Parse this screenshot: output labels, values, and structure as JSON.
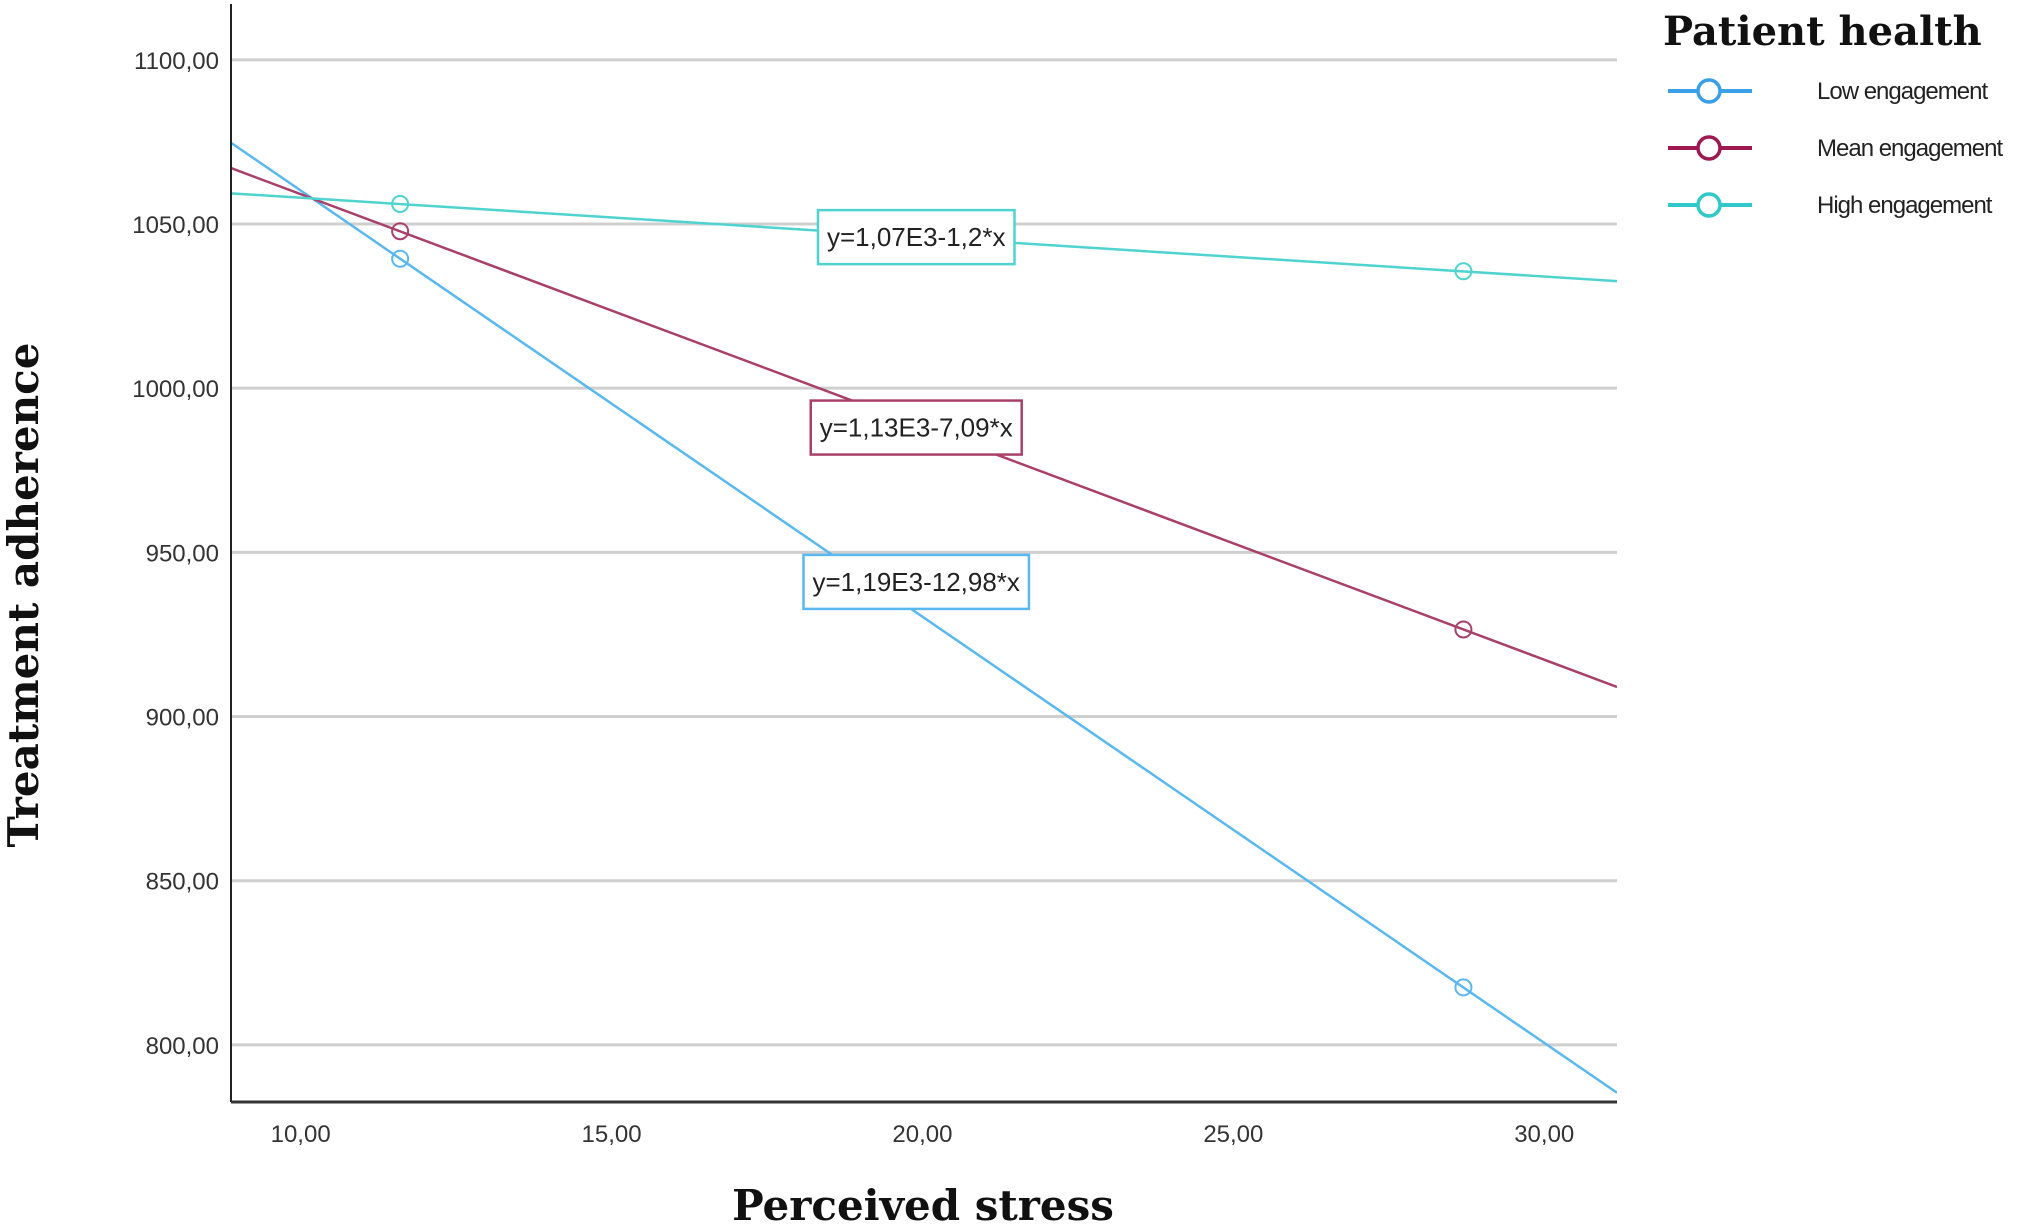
{
  "chart_data": {
    "type": "line",
    "title": "",
    "xlabel": "Perceived stress",
    "ylabel": "Treatment adherence",
    "xlim": [
      8.88,
      31.17
    ],
    "ylim": [
      782.6,
      1117
    ],
    "grid": "horizontal",
    "x_ticks": [
      10,
      15,
      20,
      25,
      30
    ],
    "x_tick_labels": [
      "10,00",
      "15,00",
      "20,00",
      "25,00",
      "30,00"
    ],
    "y_ticks": [
      800,
      850,
      900,
      950,
      1000,
      1050,
      1100
    ],
    "y_tick_labels": [
      "800,00",
      "850,00",
      "900,00",
      "950,00",
      "1000,00",
      "1050,00",
      "1100,00"
    ],
    "legend": {
      "title": "Patient health",
      "placement": "top-right"
    },
    "series": [
      {
        "name": "Low engagement",
        "intercept": 1190,
        "slope": -12.98,
        "equation": "y=1,19E3-12,98*x",
        "color": "#5ab8f0",
        "marker_color": "#3a9fe6",
        "markers": [
          [
            11.6,
            1039.4
          ],
          [
            28.7,
            817.5
          ]
        ],
        "label_at": [
          19.9,
          941
        ]
      },
      {
        "name": "Mean engagement",
        "intercept": 1130,
        "slope": -7.09,
        "equation": "y=1,13E3-7,09*x",
        "color": "#a8406a",
        "marker_color": "#a01850",
        "markers": [
          [
            11.6,
            1047.8
          ],
          [
            28.7,
            926.5
          ]
        ],
        "label_at": [
          19.9,
          988
        ]
      },
      {
        "name": "High engagement",
        "intercept": 1070,
        "slope": -1.2,
        "equation": "y=1,07E3-1,2*x",
        "color": "#4fd3d0",
        "marker_color": "#30c8c8",
        "markers": [
          [
            11.6,
            1056.1
          ],
          [
            28.7,
            1035.6
          ]
        ],
        "label_at": [
          19.9,
          1046
        ]
      }
    ]
  }
}
